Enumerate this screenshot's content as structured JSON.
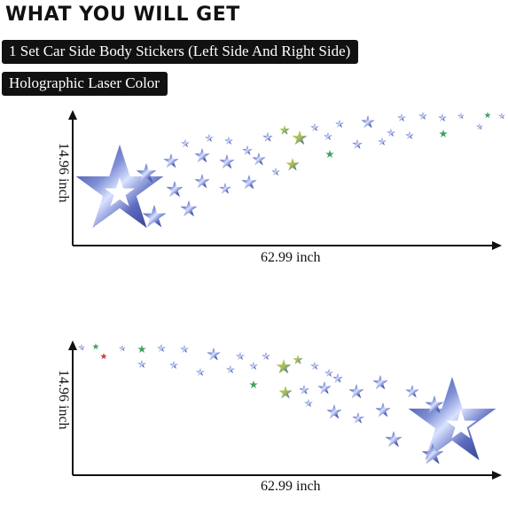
{
  "header": {
    "title": "WHAT YOU WILL GET"
  },
  "tags": [
    "1 Set Car Side Body Stickers (Left Side And Right Side)",
    "Holographic Laser Color"
  ],
  "diagrams": [
    {
      "width_label": "62.99 inch",
      "height_label": "14.96 inch"
    },
    {
      "width_label": "62.99 inch",
      "height_label": "14.96 inch"
    }
  ],
  "colors": {
    "tag_background": "#111111",
    "tag_text": "#ffffff",
    "axis": "#111111",
    "holo_primary": "#3c4a9a",
    "holo_light": "#b9c6f0",
    "holo_gold": "#e0b020",
    "holo_green": "#3fa060"
  }
}
